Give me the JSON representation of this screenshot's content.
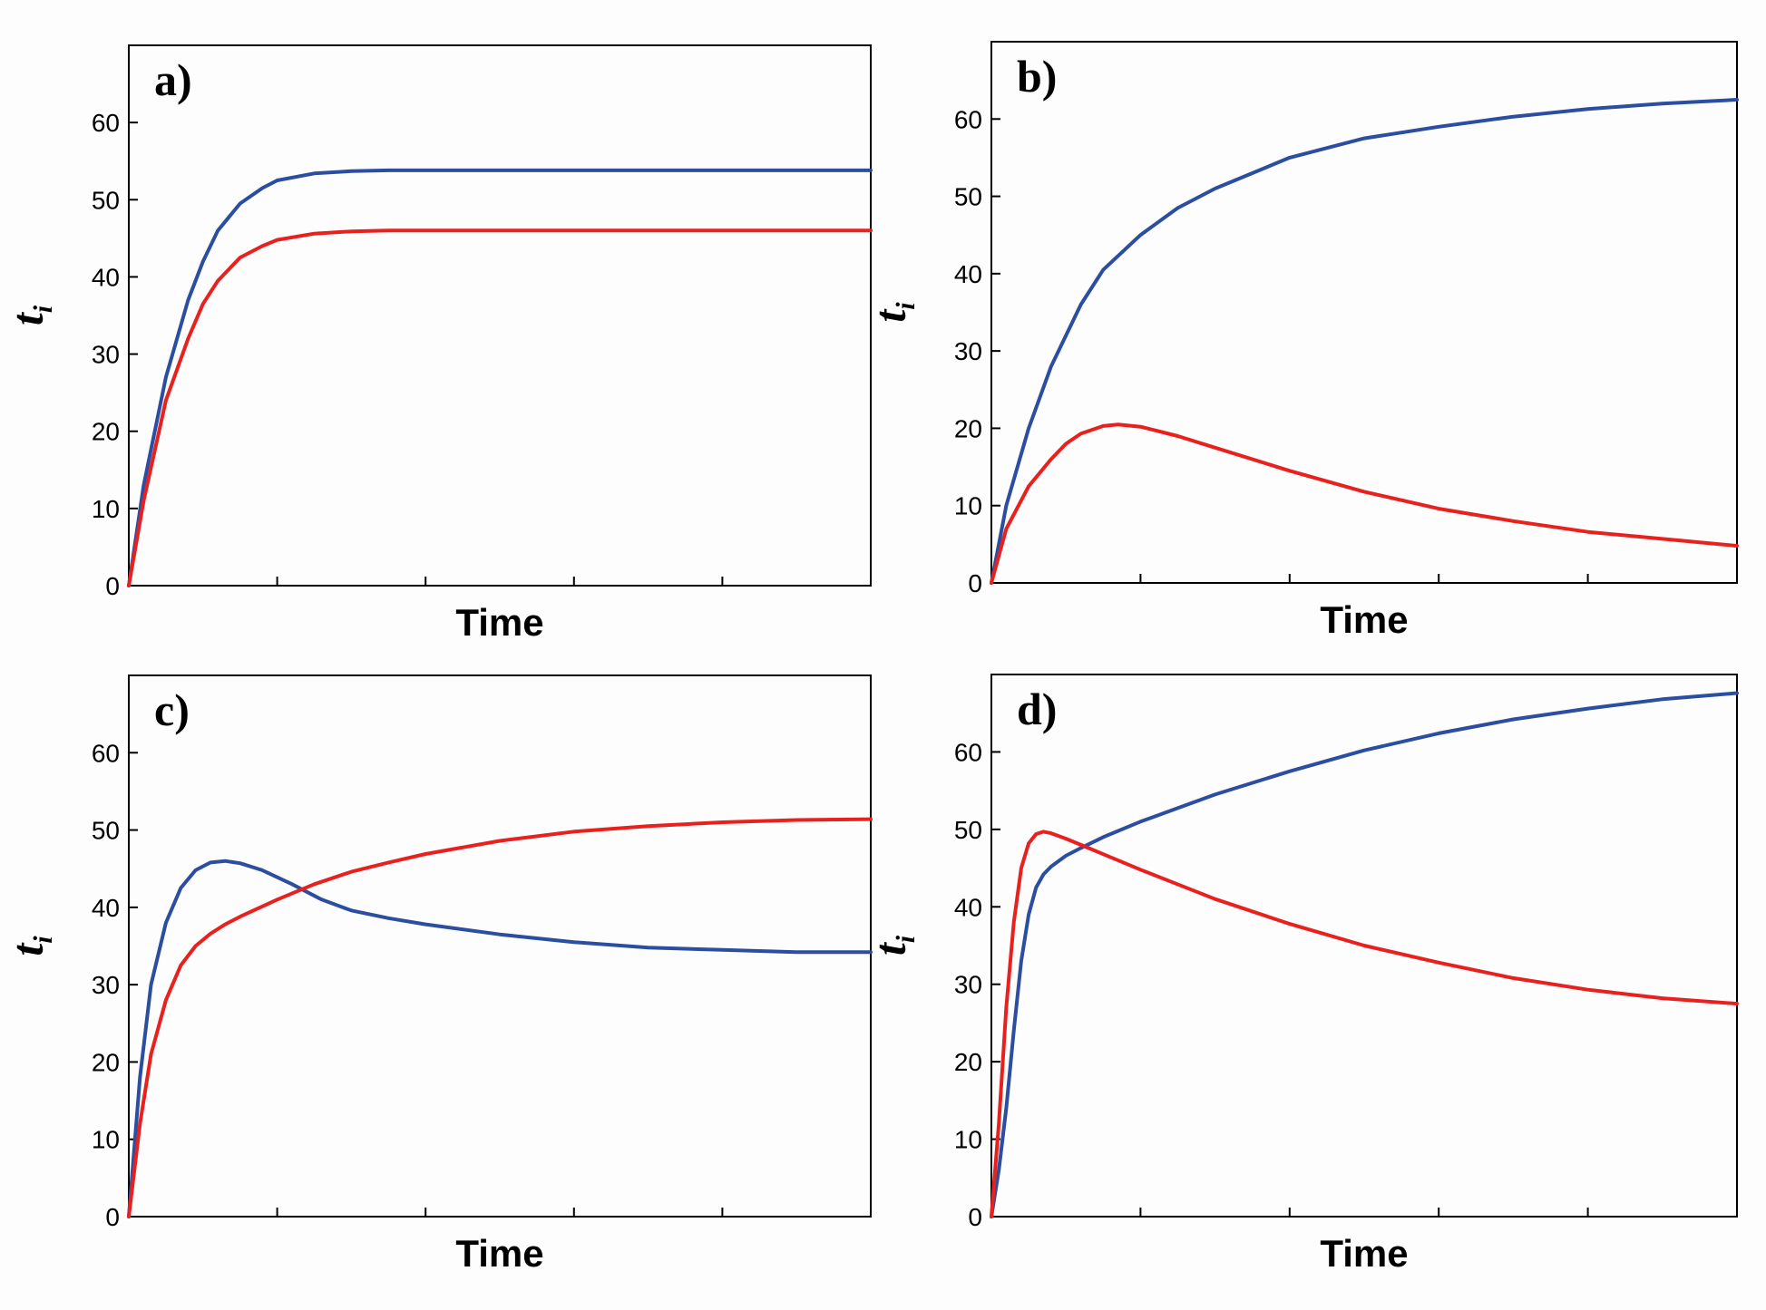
{
  "chart_data": [
    {
      "type": "line",
      "panel_label": "a)",
      "xlabel": "Time",
      "ylabel_main": "t",
      "ylabel_sub": "i",
      "ylim": [
        0,
        70
      ],
      "yticks": [
        0,
        10,
        20,
        30,
        40,
        50,
        60
      ],
      "x_range": [
        0,
        1
      ],
      "x_minor_ticks": 4,
      "series": [
        {
          "name": "blue",
          "color": "#2b4ea0",
          "x": [
            0,
            0.02,
            0.05,
            0.08,
            0.1,
            0.12,
            0.15,
            0.18,
            0.2,
            0.25,
            0.3,
            0.35,
            0.4,
            0.5,
            0.6,
            0.7,
            0.8,
            0.9,
            1.0
          ],
          "y": [
            0,
            13,
            27,
            37,
            42,
            46,
            49.5,
            51.5,
            52.5,
            53.4,
            53.7,
            53.8,
            53.8,
            53.8,
            53.8,
            53.8,
            53.8,
            53.8,
            53.8
          ]
        },
        {
          "name": "red",
          "color": "#e8211f",
          "x": [
            0,
            0.02,
            0.05,
            0.08,
            0.1,
            0.12,
            0.15,
            0.18,
            0.2,
            0.25,
            0.3,
            0.35,
            0.4,
            0.5,
            0.6,
            0.7,
            0.8,
            0.9,
            1.0
          ],
          "y": [
            0,
            11,
            24,
            32,
            36.5,
            39.5,
            42.5,
            44,
            44.8,
            45.6,
            45.9,
            46,
            46,
            46,
            46,
            46,
            46,
            46,
            46
          ]
        }
      ]
    },
    {
      "type": "line",
      "panel_label": "b)",
      "xlabel": "Time",
      "ylabel_main": "t",
      "ylabel_sub": "i",
      "ylim": [
        0,
        70
      ],
      "yticks": [
        0,
        10,
        20,
        30,
        40,
        50,
        60
      ],
      "x_range": [
        0,
        1
      ],
      "x_minor_ticks": 4,
      "series": [
        {
          "name": "blue",
          "color": "#2b4ea0",
          "x": [
            0,
            0.02,
            0.05,
            0.08,
            0.1,
            0.12,
            0.15,
            0.2,
            0.25,
            0.3,
            0.4,
            0.5,
            0.6,
            0.7,
            0.8,
            0.9,
            1.0
          ],
          "y": [
            0,
            10,
            20,
            28,
            32,
            36,
            40.5,
            45,
            48.5,
            51,
            55,
            57.5,
            59,
            60.3,
            61.3,
            62,
            62.5
          ]
        },
        {
          "name": "red",
          "color": "#e8211f",
          "x": [
            0,
            0.02,
            0.05,
            0.08,
            0.1,
            0.12,
            0.15,
            0.17,
            0.2,
            0.25,
            0.3,
            0.4,
            0.5,
            0.6,
            0.7,
            0.8,
            0.9,
            1.0
          ],
          "y": [
            0,
            7,
            12.5,
            16,
            18,
            19.3,
            20.3,
            20.5,
            20.2,
            19,
            17.5,
            14.5,
            11.8,
            9.6,
            8,
            6.6,
            5.7,
            4.8
          ]
        }
      ]
    },
    {
      "type": "line",
      "panel_label": "c)",
      "xlabel": "Time",
      "ylabel_main": "t",
      "ylabel_sub": "i",
      "ylim": [
        0,
        70
      ],
      "yticks": [
        0,
        10,
        20,
        30,
        40,
        50,
        60
      ],
      "x_range": [
        0,
        1
      ],
      "x_minor_ticks": 4,
      "series": [
        {
          "name": "blue",
          "color": "#2b4ea0",
          "x": [
            0,
            0.015,
            0.03,
            0.05,
            0.07,
            0.09,
            0.11,
            0.13,
            0.15,
            0.18,
            0.22,
            0.26,
            0.3,
            0.35,
            0.4,
            0.5,
            0.6,
            0.7,
            0.8,
            0.9,
            1.0
          ],
          "y": [
            0,
            18,
            30,
            38,
            42.5,
            44.8,
            45.8,
            46,
            45.7,
            44.8,
            43,
            41,
            39.6,
            38.6,
            37.8,
            36.5,
            35.5,
            34.8,
            34.5,
            34.2,
            34.2
          ]
        },
        {
          "name": "red",
          "color": "#e8211f",
          "x": [
            0,
            0.015,
            0.03,
            0.05,
            0.07,
            0.09,
            0.11,
            0.13,
            0.15,
            0.2,
            0.25,
            0.3,
            0.35,
            0.4,
            0.5,
            0.6,
            0.7,
            0.8,
            0.9,
            1.0
          ],
          "y": [
            0,
            12,
            21,
            28,
            32.5,
            35,
            36.6,
            37.8,
            38.8,
            41,
            43,
            44.6,
            45.8,
            46.9,
            48.6,
            49.8,
            50.5,
            51,
            51.3,
            51.4
          ]
        }
      ]
    },
    {
      "type": "line",
      "panel_label": "d)",
      "xlabel": "Time",
      "ylabel_main": "t",
      "ylabel_sub": "i",
      "ylim": [
        0,
        70
      ],
      "yticks": [
        0,
        10,
        20,
        30,
        40,
        50,
        60
      ],
      "x_range": [
        0,
        1
      ],
      "x_minor_ticks": 4,
      "series": [
        {
          "name": "blue",
          "color": "#2b4ea0",
          "x": [
            0,
            0.01,
            0.02,
            0.03,
            0.04,
            0.05,
            0.06,
            0.07,
            0.08,
            0.1,
            0.12,
            0.15,
            0.2,
            0.3,
            0.4,
            0.5,
            0.6,
            0.7,
            0.8,
            0.9,
            1.0
          ],
          "y": [
            0,
            6,
            14,
            24,
            33,
            39,
            42.5,
            44.2,
            45.2,
            46.6,
            47.6,
            49,
            51,
            54.5,
            57.5,
            60.2,
            62.4,
            64.2,
            65.6,
            66.8,
            67.6
          ]
        },
        {
          "name": "red",
          "color": "#e8211f",
          "x": [
            0,
            0.01,
            0.02,
            0.03,
            0.04,
            0.05,
            0.06,
            0.07,
            0.08,
            0.1,
            0.12,
            0.15,
            0.2,
            0.3,
            0.4,
            0.5,
            0.6,
            0.7,
            0.8,
            0.9,
            1.0
          ],
          "y": [
            0,
            12,
            27,
            38,
            45,
            48.2,
            49.4,
            49.7,
            49.5,
            48.8,
            48,
            46.8,
            44.8,
            41,
            37.8,
            35,
            32.8,
            30.8,
            29.3,
            28.2,
            27.5
          ]
        }
      ]
    }
  ]
}
